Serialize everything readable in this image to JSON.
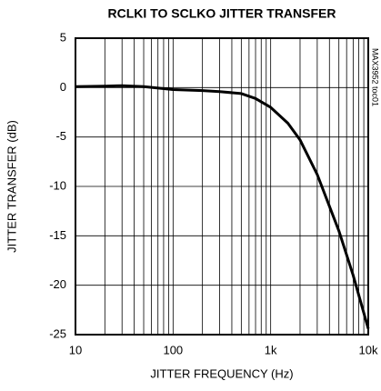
{
  "chart_data": {
    "type": "line",
    "title": "RCLKI TO SCLKO JITTER TRANSFER",
    "xlabel": "JITTER FREQUENCY (Hz)",
    "ylabel": "JITTER TRANSFER (dB)",
    "annotation": "MAX3952 toc01",
    "xscale": "log",
    "xlim": [
      10,
      10000
    ],
    "xticks": [
      10,
      100,
      {
        "value": 1000,
        "label": "1k"
      },
      {
        "value": 10000,
        "label": "10k"
      }
    ],
    "xminorticks": [
      20,
      30,
      40,
      50,
      60,
      70,
      80,
      90,
      200,
      300,
      400,
      500,
      600,
      700,
      800,
      900,
      2000,
      3000,
      4000,
      5000,
      6000,
      7000,
      8000,
      9000
    ],
    "ylim": [
      -25,
      5
    ],
    "yticks": [
      5,
      0,
      -5,
      -10,
      -15,
      -20,
      -25
    ],
    "grid": true,
    "series": [
      {
        "color": "#000000",
        "x": [
          10,
          20,
          30,
          50,
          100,
          200,
          300,
          500,
          700,
          1000,
          1500,
          2000,
          3000,
          5000,
          7000,
          10000
        ],
        "values": [
          0.1,
          0.15,
          0.2,
          0.1,
          -0.2,
          -0.3,
          -0.4,
          -0.6,
          -1.1,
          -2,
          -3.6,
          -5.3,
          -8.8,
          -14.5,
          -19,
          -24.4
        ]
      }
    ]
  }
}
